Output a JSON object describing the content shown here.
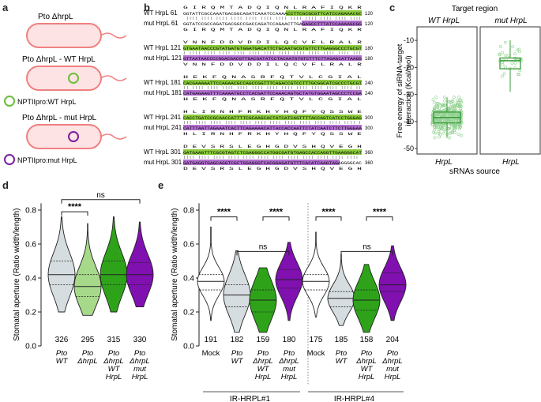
{
  "panels": {
    "a": "a",
    "b": "b",
    "c": "c",
    "d": "d",
    "e": "e"
  },
  "panel_a": {
    "strain1": "Pto ΔhrpL",
    "strain2": "Pto ΔhrpL - WT HrpL",
    "strain3": "Pto ΔhrpL - mut HrpL",
    "legend_wt": "NPTIIpro:WT HrpL",
    "legend_mut": "NPTIIpro:mut HrpL",
    "colors": {
      "cell": "#f08080",
      "wt_plasmid": "#6bbf3a",
      "mut_plasmid": "#7b1fa2"
    }
  },
  "panel_b": {
    "blocks": [
      {
        "wt_label": "WT HrpL",
        "mut_label": "mut HrpL",
        "start": "61",
        "end": "120",
        "aa_top": "G I R Q M T A D Q I Q N L R A F I Q K R",
        "aa_bot": "G I R Q M T A D Q I Q N L R A F I Q K R",
        "nt_top": "GGTATTCGCCAAATGACGGCAGATCAAATCCAAAACCTTCGCGCGTTCATCCAGAAACGC",
        "nt_bot": "GGTATCCGCCAGATGACGGCCGACCAGATCCAGAACTTGAGAGCCTTTATCCAAAAGCGG"
      },
      {
        "wt_label": "WT HrpL",
        "mut_label": "mut HrpL",
        "start": "121",
        "end": "180",
        "aa_top": "V N N F D D V D D I L Q C V F L R A L R",
        "aa_bot": "V N N F D D V D D I L Q C V F L R A L R",
        "nt_top": "GTGAATAACCCGTATGATGTGGATGACATTCTGCAATGCGTGTTCTTGAGGGCCCTGCGT",
        "nt_bot": "GTTAATAACCCCGGACGACGTTGACGATATCCTACAATGTGTCTTTCTTAGAGCATTAAGG"
      },
      {
        "wt_label": "WT HrpL",
        "mut_label": "mut HrpL",
        "start": "181",
        "end": "240",
        "aa_top": "H E K F Q N A S R F Q T V L C G I A L",
        "aa_bot": "H E K F Q N A S R F Q T V L C G I A L",
        "nt_top": "CACGAAAAATTCCAGAACGCCAGCCGGTTTCAGACCGTCCTTTGCGGCATCGCCCTGCGT",
        "nt_bot": "CATGAGAAGTTTCAAAATGCCTCACGATTCCAAACAGTGCTATGTGGAATAGCCCTCCGA"
      },
      {
        "wt_label": "WT HrpL",
        "mut_label": "mut HrpL",
        "start": "241",
        "end": "300",
        "aa_top": "H L I R N H F R K H Y H Q F Y Q S S W E",
        "aa_bot": "H L I R N H F R K H Y H Q F Y Q S S W E",
        "nt_top": "CACCTGATCCGCAACCATTTTCGCAAGCACTATCATCAGTTTTACCAGTCATCCTGGGAG",
        "nt_bot": "CATTTAATTAGAAATCACTTCAGAAAACATTACCACCAATTCTATCAATCTTCTTGGGAA"
      },
      {
        "wt_label": "WT HrpL",
        "mut_label": "mut HrpL",
        "start": "301",
        "end": "360",
        "aa_top": "D E V S R S L E G H G D V S H Q V E G H",
        "aa_bot": "D E V S R S L E G H G D V S H Q V E G H",
        "nt_top": "GATGAAGTTTCGCGTAGTCTCGAGGGCCATGGCGATGTGAGCCACCAGGTTGAAGGGCAT",
        "nt_bot": "GATGAGGTGAGCAGGTCGCTGGAGGGTCACGGAGATGTTTCACATCAAGTAGAGGGGCAC"
      }
    ],
    "colors": {
      "green": "#8ccc3c",
      "purple": "#b26fd0"
    }
  },
  "panel_c": {
    "title": "Target region",
    "col_wt": "WT HrpL",
    "col_mut": "mut HrpL",
    "ylabel_line1": "Free energy of siRNA-target",
    "ylabel_line2": "interaction (Kcal/mol)",
    "xlabel": "sRNAs source",
    "xtick_wt": "HrpL",
    "xtick_mut": "HrpL",
    "ylim": [
      -52,
      -5
    ],
    "yticks": [
      "-10",
      "-20",
      "-30",
      "-40",
      "-50"
    ]
  },
  "chart_data": [
    {
      "type": "box",
      "panel": "c",
      "title": "Target region",
      "ylabel": "Free energy of siRNA-target interaction (Kcal/mol)",
      "xlabel": "sRNAs source",
      "ylim": [
        -52,
        -5
      ],
      "series": [
        {
          "name": "WT HrpL",
          "q1": -40.5,
          "median": -38.5,
          "q3": -36.5,
          "whisker_low": -46,
          "whisker_high": -31,
          "n_points": 360
        },
        {
          "name": "mut HrpL",
          "q1": -20.5,
          "median": -17.5,
          "q3": -16.5,
          "whisker_low": -29,
          "whisker_high": -10,
          "n_points": 35
        }
      ]
    },
    {
      "type": "violin",
      "panel": "d",
      "ylabel": "Stomatal aperture (Ratio width/length)",
      "ylim": [
        0,
        0.85
      ],
      "yticks": [
        "0.0",
        "0.2",
        "0.4",
        "0.6",
        "0.8"
      ],
      "categories": [
        "Pto WT",
        "Pto ΔhrpL",
        "Pto ΔhrpL WT HrpL",
        "Pto ΔhrpL mut HrpL"
      ],
      "n": [
        "326",
        "295",
        "315",
        "330"
      ],
      "median": [
        0.42,
        0.35,
        0.42,
        0.42
      ],
      "q1": [
        0.36,
        0.29,
        0.36,
        0.36
      ],
      "q3": [
        0.5,
        0.42,
        0.5,
        0.49
      ],
      "min": [
        0.2,
        0.18,
        0.2,
        0.23
      ],
      "max": [
        0.76,
        0.72,
        0.76,
        0.73
      ],
      "significance": [
        {
          "pair": [
            0,
            1
          ],
          "label": "****"
        },
        {
          "pair": [
            0,
            3
          ],
          "label": "ns"
        }
      ]
    },
    {
      "type": "violin",
      "panel": "e",
      "ylabel": "Stomatal aperture (Ratio width/length)",
      "ylim": [
        0,
        0.85
      ],
      "yticks": [
        "0.0",
        "0.2",
        "0.4",
        "0.6",
        "0.8"
      ],
      "groups": [
        {
          "name": "IR-HRPL#1",
          "categories": [
            "Mock",
            "Pto WT",
            "Pto ΔhrpL WT HrpL",
            "Pto ΔhrpL mut HrpL"
          ],
          "n": [
            "191",
            "182",
            "159",
            "180"
          ],
          "median": [
            0.38,
            0.3,
            0.27,
            0.39
          ],
          "q1": [
            0.33,
            0.23,
            0.2,
            0.34
          ],
          "q3": [
            0.42,
            0.36,
            0.33,
            0.45
          ],
          "min": [
            0.15,
            0.08,
            0.08,
            0.15
          ],
          "max": [
            0.7,
            0.56,
            0.46,
            0.61
          ]
        },
        {
          "name": "IR-HRPL#4",
          "categories": [
            "Mock",
            "Pto WT",
            "Pto ΔhrpL WT HrpL",
            "Pto ΔhrpL mut HrpL"
          ],
          "n": [
            "175",
            "185",
            "158",
            "204"
          ],
          "median": [
            0.38,
            0.28,
            0.27,
            0.36
          ],
          "q1": [
            0.33,
            0.23,
            0.21,
            0.32
          ],
          "q3": [
            0.42,
            0.32,
            0.33,
            0.43
          ],
          "min": [
            0.17,
            0.12,
            0.08,
            0.15
          ],
          "max": [
            0.67,
            0.54,
            0.48,
            0.59
          ]
        }
      ],
      "significance": [
        "****",
        "ns",
        "****",
        "****",
        "ns",
        "****"
      ]
    }
  ],
  "panel_d": {
    "ylabel": "Stomatal aperture (Ratio width/length)",
    "xt": [
      [
        "Pto",
        "WT",
        ""
      ],
      [
        "Pto",
        "ΔhrpL",
        ""
      ],
      [
        "Pto",
        "ΔhrpL",
        "WT",
        "HrpL"
      ],
      [
        "Pto",
        "ΔhrpL",
        "mut",
        "HrpL"
      ]
    ],
    "sig1": "****",
    "sig2": "ns"
  },
  "panel_e": {
    "ylabel": "Stomatal aperture (Ratio width/length)",
    "group1": "IR-HRPL#1",
    "group2": "IR-HRPL#4",
    "mock": "Mock",
    "sig": "****",
    "ns": "ns"
  },
  "colors": {
    "gray": "#d6dde0",
    "lightgreen": "#a6d98a",
    "green": "#2ea31a",
    "purple": "#8010b0",
    "boxgreen": "#3a9a3a"
  }
}
